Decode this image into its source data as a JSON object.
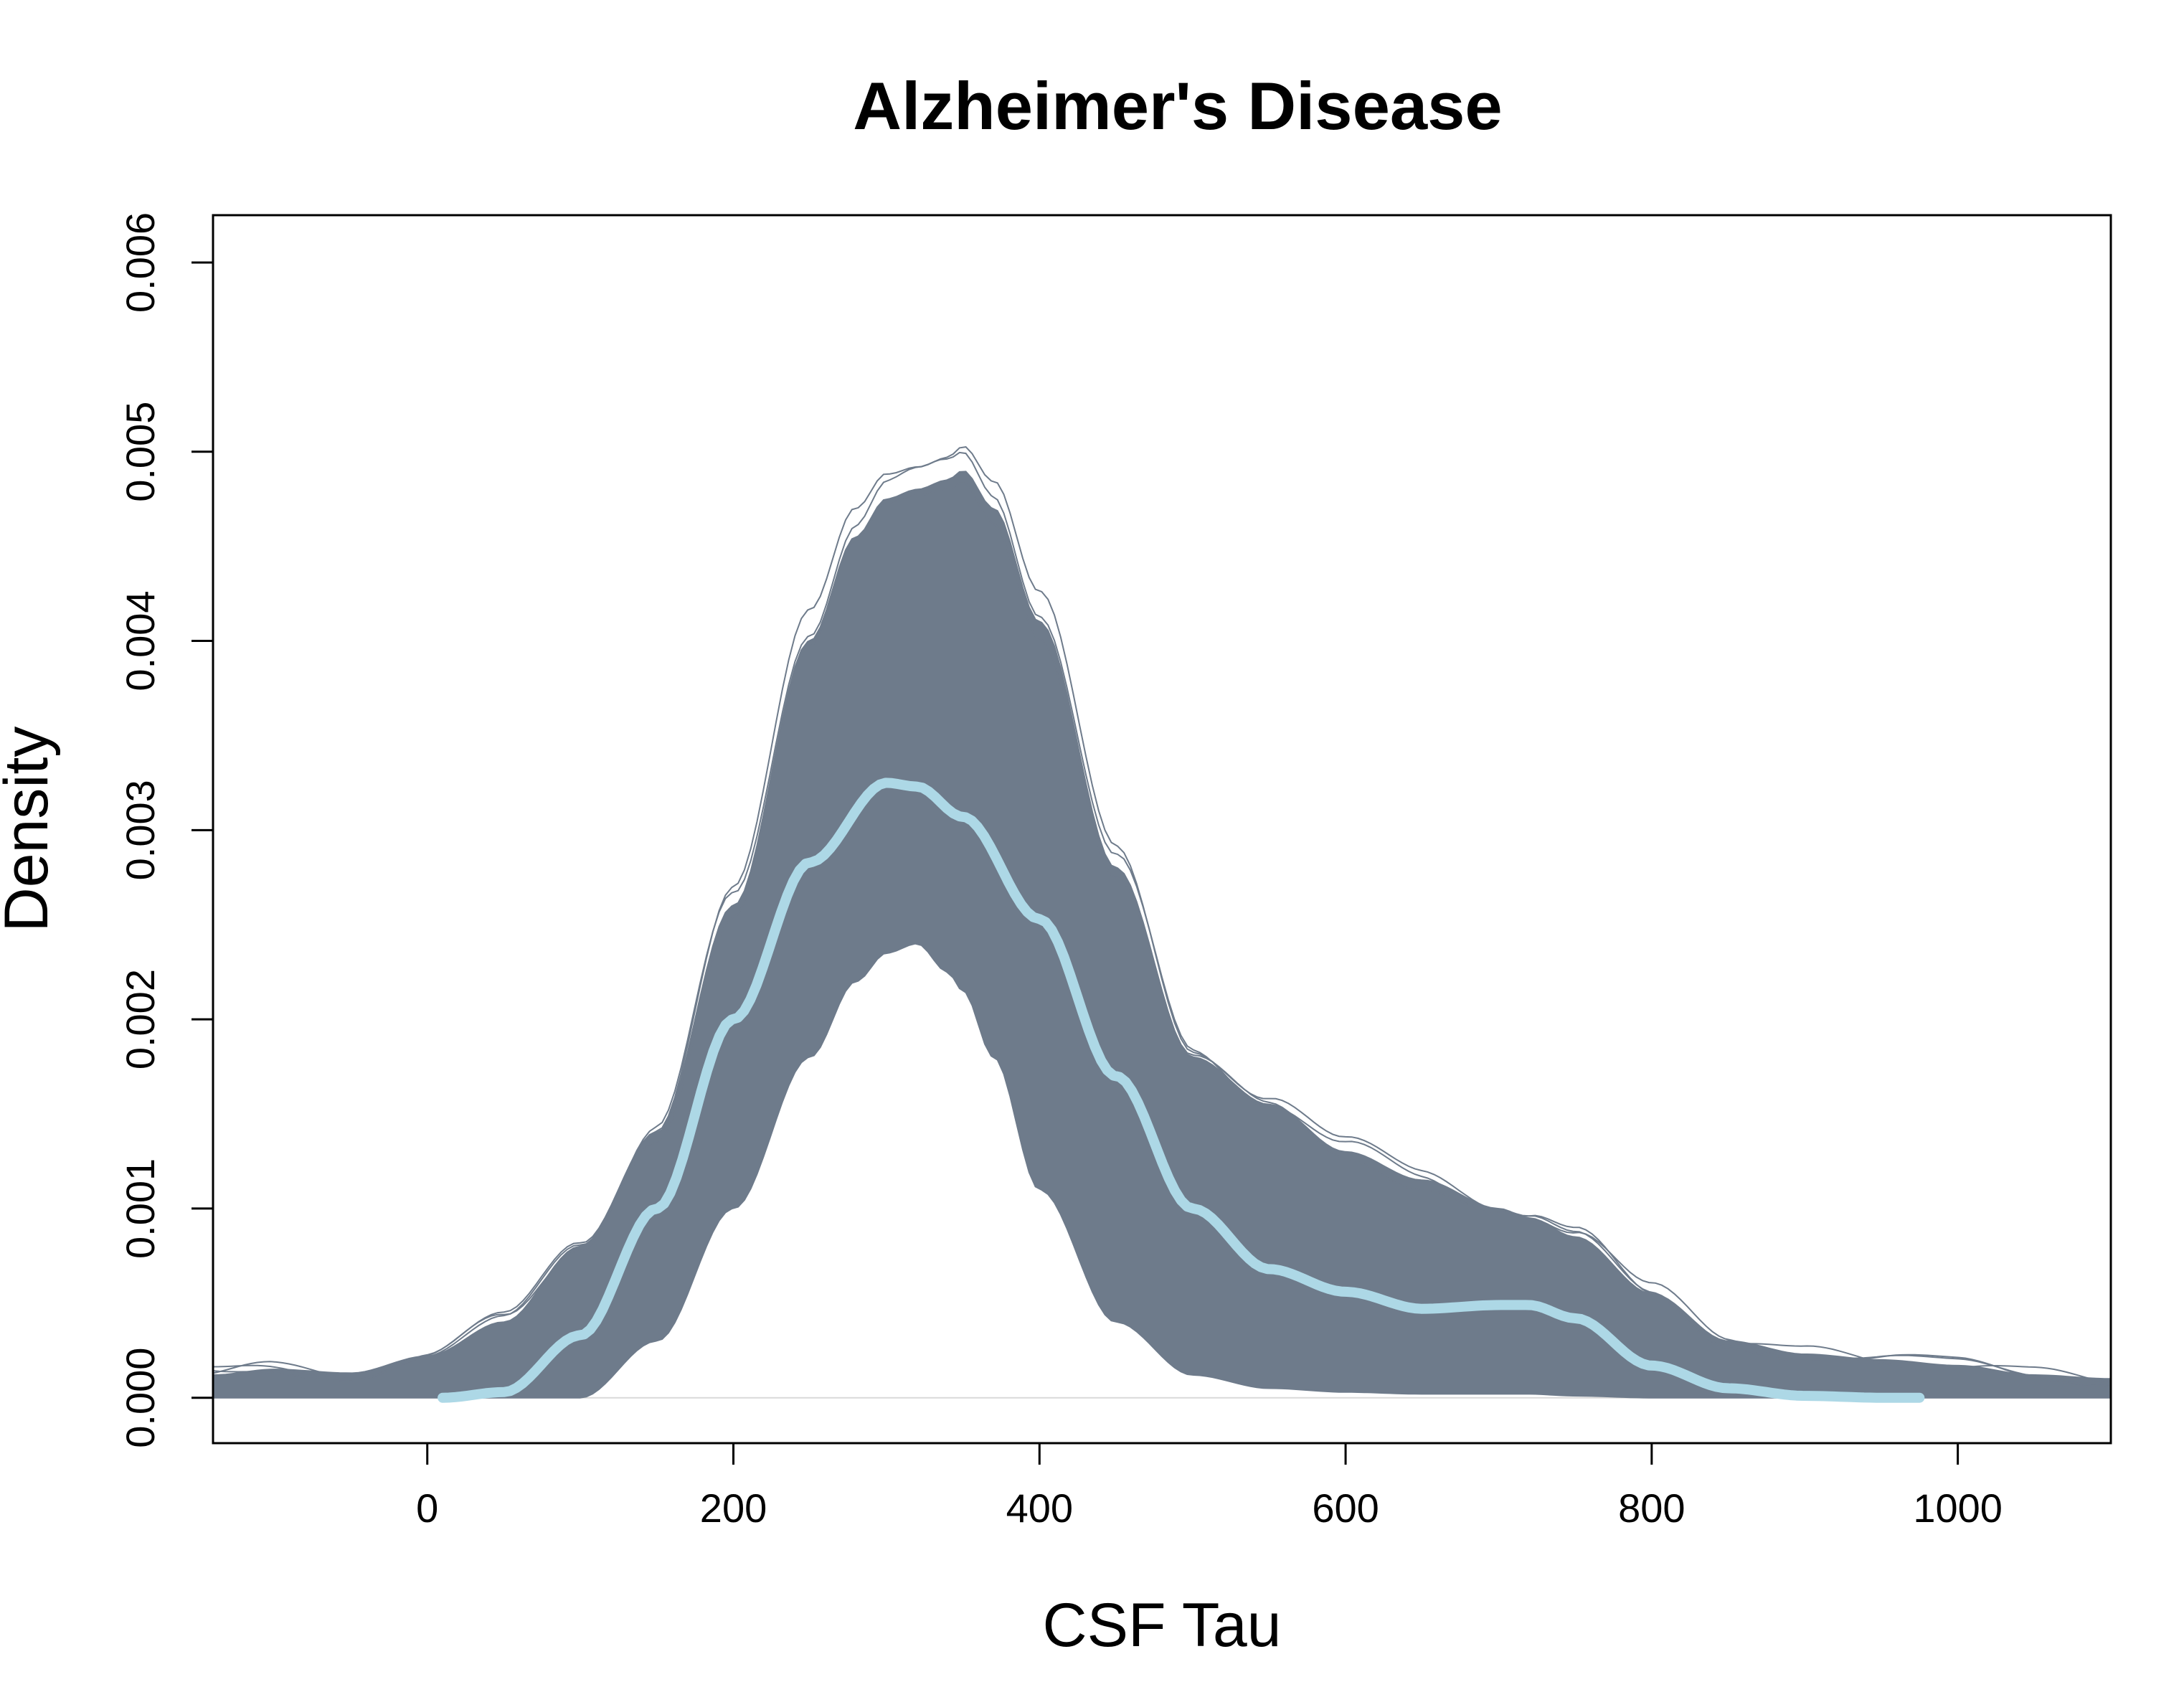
{
  "chart_data": {
    "type": "line",
    "title": "Alzheimer's Disease",
    "xlabel": "CSF Tau",
    "ylabel": "Density",
    "xlim": [
      -140,
      1100
    ],
    "ylim": [
      -0.00024,
      0.00625
    ],
    "x_ticks": [
      0,
      200,
      400,
      600,
      800,
      1000
    ],
    "x_tick_labels": [
      "0",
      "200",
      "400",
      "600",
      "800",
      "1000"
    ],
    "y_ticks": [
      0,
      0.001,
      0.002,
      0.003,
      0.004,
      0.005,
      0.006
    ],
    "y_tick_labels": [
      "0.000",
      "0.001",
      "0.002",
      "0.003",
      "0.004",
      "0.005",
      "0.006"
    ],
    "grid": false,
    "legend": "none",
    "colors": {
      "replicates": "#6e7b8b",
      "mean": "#add8e6",
      "baseline": "#d9d9d9",
      "axis": "#000000"
    },
    "series": [
      {
        "x": [
          10,
          50,
          100,
          150,
          200,
          250,
          300,
          320,
          350,
          400,
          450,
          500,
          550,
          600,
          650,
          700,
          720,
          750,
          800,
          850,
          900,
          950,
          975
        ],
        "values": [
          0.0,
          3e-05,
          0.00033,
          0.001,
          0.002,
          0.00283,
          0.00325,
          0.00323,
          0.00307,
          0.00253,
          0.0017,
          0.001,
          0.00068,
          0.00056,
          0.00047,
          0.00049,
          0.00049,
          0.00042,
          0.00017,
          5e-05,
          1e-05,
          0.0,
          0.0
        ]
      }
    ],
    "envelope": {
      "x": [
        -140,
        -100,
        -50,
        0,
        50,
        100,
        150,
        200,
        250,
        280,
        300,
        320,
        340,
        350,
        370,
        400,
        450,
        500,
        550,
        600,
        650,
        700,
        720,
        750,
        800,
        850,
        900,
        950,
        1000,
        1050,
        1100
      ],
      "upper": [
        0.00012,
        0.00015,
        0.00013,
        0.00022,
        0.0004,
        0.0008,
        0.0014,
        0.0026,
        0.004,
        0.00455,
        0.00475,
        0.0048,
        0.00485,
        0.0049,
        0.0047,
        0.0041,
        0.0028,
        0.0018,
        0.00155,
        0.0013,
        0.00115,
        0.001,
        0.00095,
        0.00085,
        0.00055,
        0.0003,
        0.00023,
        0.0002,
        0.00017,
        0.00012,
        0.0001
      ],
      "lower": [
        0.0,
        0.0,
        0.0,
        0.0,
        0.0,
        0.0,
        0.0003,
        0.001,
        0.0018,
        0.0022,
        0.00235,
        0.0024,
        0.00225,
        0.00215,
        0.0018,
        0.0011,
        0.0004,
        0.00012,
        5e-05,
        3e-05,
        2e-05,
        2e-05,
        2e-05,
        1e-05,
        0.0,
        0.0,
        0.0,
        0.0,
        0.0,
        0.0,
        0.0
      ]
    }
  }
}
